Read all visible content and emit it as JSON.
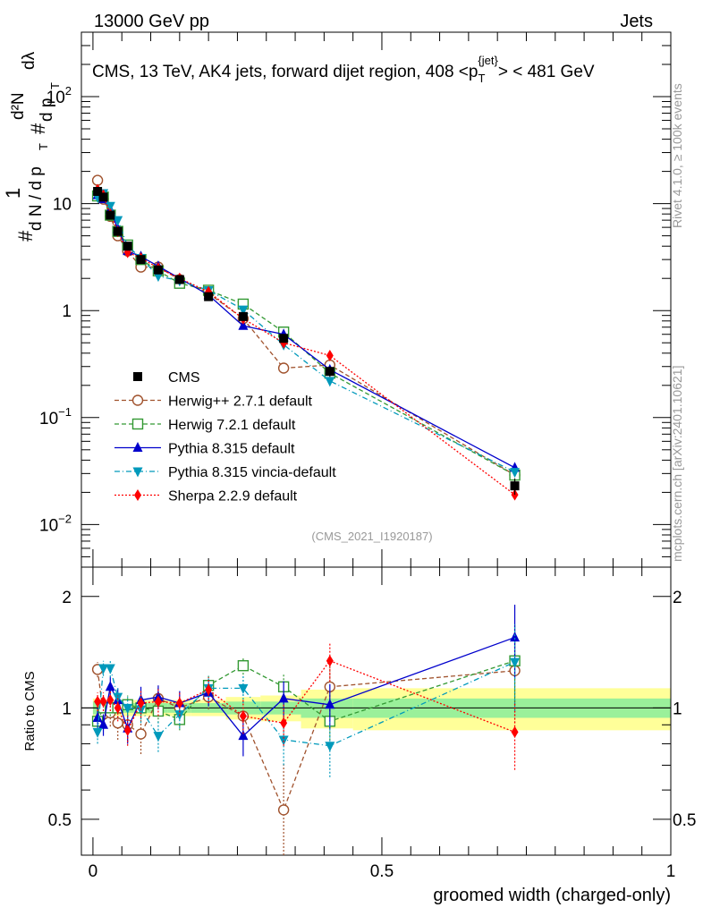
{
  "header": {
    "left": "13000 GeV pp",
    "right": "Jets"
  },
  "side_labels": {
    "rivet": "Rivet 4.1.0, ≥ 100k events",
    "mcplots": "mcplots.cern.ch [arXiv:2401.10621]"
  },
  "chart_data": {
    "type": "line",
    "title": "CMS, 13 TeV, AK4 jets, forward dijet region, 408 <p_T^{jet}> < 481 GeV",
    "title_parts": {
      "pre": "CMS, 13 TeV, AK4 jets, forward dijet region, 408 <p",
      "sub": "T",
      "sup": "{jet}",
      "post": "> < 481 GeV"
    },
    "analysis_id": "(CMS_2021_I1920187)",
    "xlabel": "groomed width (charged-only)",
    "ylabel": {
      "hash1": "#",
      "one": "1",
      "dN": "d N / d p",
      "sub_T": "T",
      "hash2": "#",
      "d2N": "d²N",
      "dp": "d p",
      "sub_T2": "T",
      "dlambda": "dλ"
    },
    "ratio_ylabel": "Ratio to CMS",
    "xlim": [
      -0.02,
      1.0
    ],
    "ylim": [
      0.004,
      400
    ],
    "yscale": "log",
    "ratio_ylim": [
      0.4,
      2.4
    ],
    "x_ticks": [
      {
        "value": 0,
        "label": "0"
      },
      {
        "value": 0.5,
        "label": "0.5"
      },
      {
        "value": 1,
        "label": "1"
      }
    ],
    "y_ticks": [
      {
        "value": 0.01,
        "base": "10",
        "exp": "−2"
      },
      {
        "value": 0.1,
        "base": "10",
        "exp": "−1"
      },
      {
        "value": 1,
        "base": "1",
        "exp": ""
      },
      {
        "value": 10,
        "base": "10",
        "exp": ""
      },
      {
        "value": 100,
        "base": "10",
        "exp": "2"
      }
    ],
    "ratio_ticks": [
      {
        "value": 0.5,
        "label": "0.5"
      },
      {
        "value": 1,
        "label": "1"
      },
      {
        "value": 2,
        "label": "2"
      }
    ],
    "x": [
      0.008,
      0.018,
      0.03,
      0.043,
      0.06,
      0.083,
      0.113,
      0.15,
      0.2,
      0.26,
      0.33,
      0.41,
      0.73
    ],
    "bin_edges": [
      0.0,
      0.012,
      0.024,
      0.036,
      0.05,
      0.07,
      0.095,
      0.13,
      0.17,
      0.23,
      0.29,
      0.36,
      0.45,
      1.0
    ],
    "data": {
      "name": "CMS",
      "values": [
        13.0,
        11.5,
        7.8,
        5.5,
        4.0,
        3.0,
        2.4,
        1.95,
        1.35,
        0.88,
        0.55,
        0.27,
        0.023
      ],
      "errors": [
        0.6,
        0.5,
        0.4,
        0.3,
        0.2,
        0.15,
        0.12,
        0.1,
        0.08,
        0.06,
        0.04,
        0.03,
        0.004
      ]
    },
    "uncertainty_bands": {
      "stat_color": "#9af09a",
      "total_color": "#ffff99",
      "stat": [
        0.04,
        0.03,
        0.03,
        0.03,
        0.03,
        0.03,
        0.03,
        0.03,
        0.03,
        0.04,
        0.04,
        0.06,
        0.06
      ],
      "total": [
        0.06,
        0.05,
        0.05,
        0.05,
        0.05,
        0.05,
        0.05,
        0.05,
        0.05,
        0.07,
        0.08,
        0.12,
        0.13
      ]
    },
    "series": [
      {
        "name": "Herwig++ 2.7.1 default",
        "color": "#a0522d",
        "marker": "open-circle",
        "dash": "5,3",
        "values": [
          16.5,
          11.0,
          7.6,
          5.0,
          3.6,
          2.55,
          2.55,
          1.95,
          1.45,
          0.84,
          0.29,
          0.31,
          0.029
        ],
        "ratio": [
          1.27,
          0.96,
          0.97,
          0.91,
          0.9,
          0.85,
          1.06,
          1.0,
          1.07,
          0.95,
          0.53,
          1.14,
          1.26
        ],
        "ratio_err": [
          0.06,
          0.07,
          0.08,
          0.09,
          0.09,
          0.1,
          0.08,
          0.07,
          0.08,
          0.1,
          0.18,
          0.16,
          0.35
        ]
      },
      {
        "name": "Herwig 7.2.1 default",
        "color": "#339933",
        "marker": "open-square",
        "dash": "5,3",
        "values": [
          11.8,
          11.5,
          7.8,
          5.5,
          4.1,
          3.0,
          2.35,
          1.8,
          1.55,
          1.15,
          0.63,
          0.26,
          0.029
        ],
        "ratio": [
          0.92,
          1.0,
          1.0,
          1.0,
          1.02,
          1.0,
          0.98,
          0.93,
          1.15,
          1.3,
          1.14,
          0.92,
          1.34
        ],
        "ratio_err": [
          0.04,
          0.05,
          0.05,
          0.06,
          0.06,
          0.07,
          0.07,
          0.06,
          0.07,
          0.07,
          0.1,
          0.12,
          0.35
        ]
      },
      {
        "name": "Pythia 8.315 default",
        "color": "#0000cc",
        "marker": "filled-triangle-up",
        "dash": "",
        "values": [
          12.0,
          11.0,
          8.8,
          5.8,
          3.6,
          3.2,
          2.6,
          2.0,
          1.4,
          0.72,
          0.6,
          0.28,
          0.034
        ],
        "ratio": [
          0.94,
          0.9,
          1.14,
          1.05,
          0.88,
          1.05,
          1.07,
          1.03,
          1.1,
          0.84,
          1.06,
          1.02,
          1.55
        ],
        "ratio_err": [
          0.06,
          0.06,
          0.07,
          0.08,
          0.08,
          0.09,
          0.08,
          0.08,
          0.09,
          0.1,
          0.12,
          0.14,
          0.35
        ]
      },
      {
        "name": "Pythia 8.315 vincia-default",
        "color": "#0099bb",
        "marker": "filled-triangle-down",
        "dash": "6,3,1,3",
        "values": [
          11.5,
          12.5,
          9.5,
          7.0,
          4.0,
          3.1,
          2.1,
          1.9,
          1.55,
          1.02,
          0.48,
          0.22,
          0.031
        ],
        "ratio": [
          0.86,
          1.28,
          1.28,
          1.07,
          1.0,
          0.99,
          0.84,
          0.96,
          1.13,
          1.13,
          0.82,
          0.79,
          1.33
        ],
        "ratio_err": [
          0.06,
          0.06,
          0.07,
          0.07,
          0.07,
          0.08,
          0.08,
          0.08,
          0.09,
          0.1,
          0.12,
          0.14,
          0.35
        ]
      },
      {
        "name": "Sherpa 2.2.9 default",
        "color": "#ff0000",
        "marker": "filled-diamond",
        "dash": "2,2",
        "values": [
          13.5,
          12.0,
          8.0,
          5.5,
          3.5,
          3.1,
          2.5,
          2.0,
          1.5,
          0.84,
          0.5,
          0.38,
          0.019
        ],
        "ratio": [
          1.04,
          1.04,
          1.05,
          1.0,
          0.87,
          1.03,
          1.04,
          1.03,
          1.12,
          0.95,
          0.91,
          1.34,
          0.86
        ],
        "ratio_err": [
          0.06,
          0.06,
          0.07,
          0.08,
          0.08,
          0.09,
          0.09,
          0.08,
          0.09,
          0.1,
          0.12,
          0.16,
          0.18
        ]
      }
    ]
  }
}
